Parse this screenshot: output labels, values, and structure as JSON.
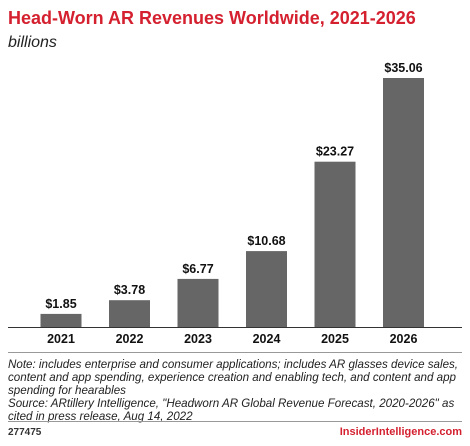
{
  "chart_data": {
    "type": "bar",
    "title": "Head-Worn AR Revenues Worldwide, 2021-2026",
    "subtitle": "billions",
    "categories": [
      "2021",
      "2022",
      "2023",
      "2024",
      "2025",
      "2026"
    ],
    "values": [
      1.85,
      3.78,
      6.77,
      10.68,
      23.27,
      35.06
    ],
    "data_labels": [
      "$1.85",
      "$3.78",
      "$6.77",
      "$10.68",
      "$23.27",
      "$35.06"
    ],
    "ylim": [
      0,
      36
    ],
    "bar_color": "#666666",
    "grid": false,
    "xlabel": "",
    "ylabel": ""
  },
  "note": "Note: includes enterprise and consumer applications; includes AR glasses device sales, content and app spending, experience creation and enabling tech, and content and app spending for hearables",
  "source": "Source: ARtillery Intelligence, \"Headworn AR Global Revenue Forecast, 2020-2026\" as cited in press release, Aug 14, 2022",
  "footer": {
    "chart_id": "277475",
    "brand": "InsiderIntelligence.com"
  }
}
